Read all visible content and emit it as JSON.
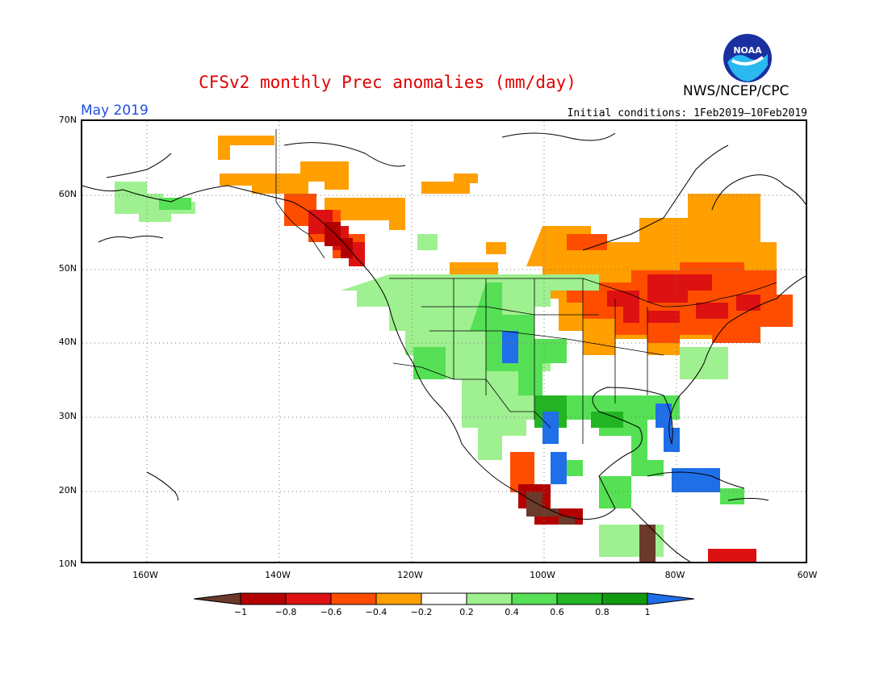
{
  "header": {
    "title": "CFSv2 monthly Prec anomalies (mm/day)",
    "month": "May 2019",
    "initial_conditions": "Initial conditions: 1Feb2019–10Feb2019",
    "agency": "NWS/NCEP/CPC",
    "logo_text": "NOAA"
  },
  "axes": {
    "lat_labels": [
      "70N",
      "60N",
      "50N",
      "40N",
      "30N",
      "20N",
      "10N"
    ],
    "lon_labels": [
      "160W",
      "140W",
      "120W",
      "100W",
      "80W",
      "60W"
    ]
  },
  "colorbar": {
    "labels": [
      "−1",
      "−0.8",
      "−0.6",
      "−0.4",
      "−0.2",
      "0.2",
      "0.4",
      "0.6",
      "0.8",
      "1"
    ],
    "colors": {
      "below_min": "#6b3a2a",
      "bins": [
        "#b30000",
        "#dd1111",
        "#ff4d00",
        "#ff9f00",
        "#ffffff",
        "#9ff090",
        "#55e055",
        "#22b422",
        "#0f9a0f"
      ],
      "above_max": "#1f6fe8"
    }
  },
  "map": {
    "domain": "North America, 170W–60W, 10N–70N",
    "anomaly_regions": [
      {
        "region": "Great Lakes & Northeast US / SE Canada",
        "anomaly": "-0.6 to -0.8"
      },
      {
        "region": "Southern Alaska panhandle & British Columbia coast",
        "anomaly": "-0.8 to -1"
      },
      {
        "region": "Central Canada",
        "anomaly": "-0.2 to -0.4"
      },
      {
        "region": "Southern Rockies / Colorado",
        "anomaly": "> 1"
      },
      {
        "region": "Florida",
        "anomaly": "> 1"
      },
      {
        "region": "Texas Gulf coast & eastern Mexico",
        "anomaly": "0.6 to > 1"
      },
      {
        "region": "Southwestern Mexico coast",
        "anomaly": "< -1"
      },
      {
        "region": "Western Alaska",
        "anomaly": "0.2 to 0.6"
      }
    ]
  }
}
